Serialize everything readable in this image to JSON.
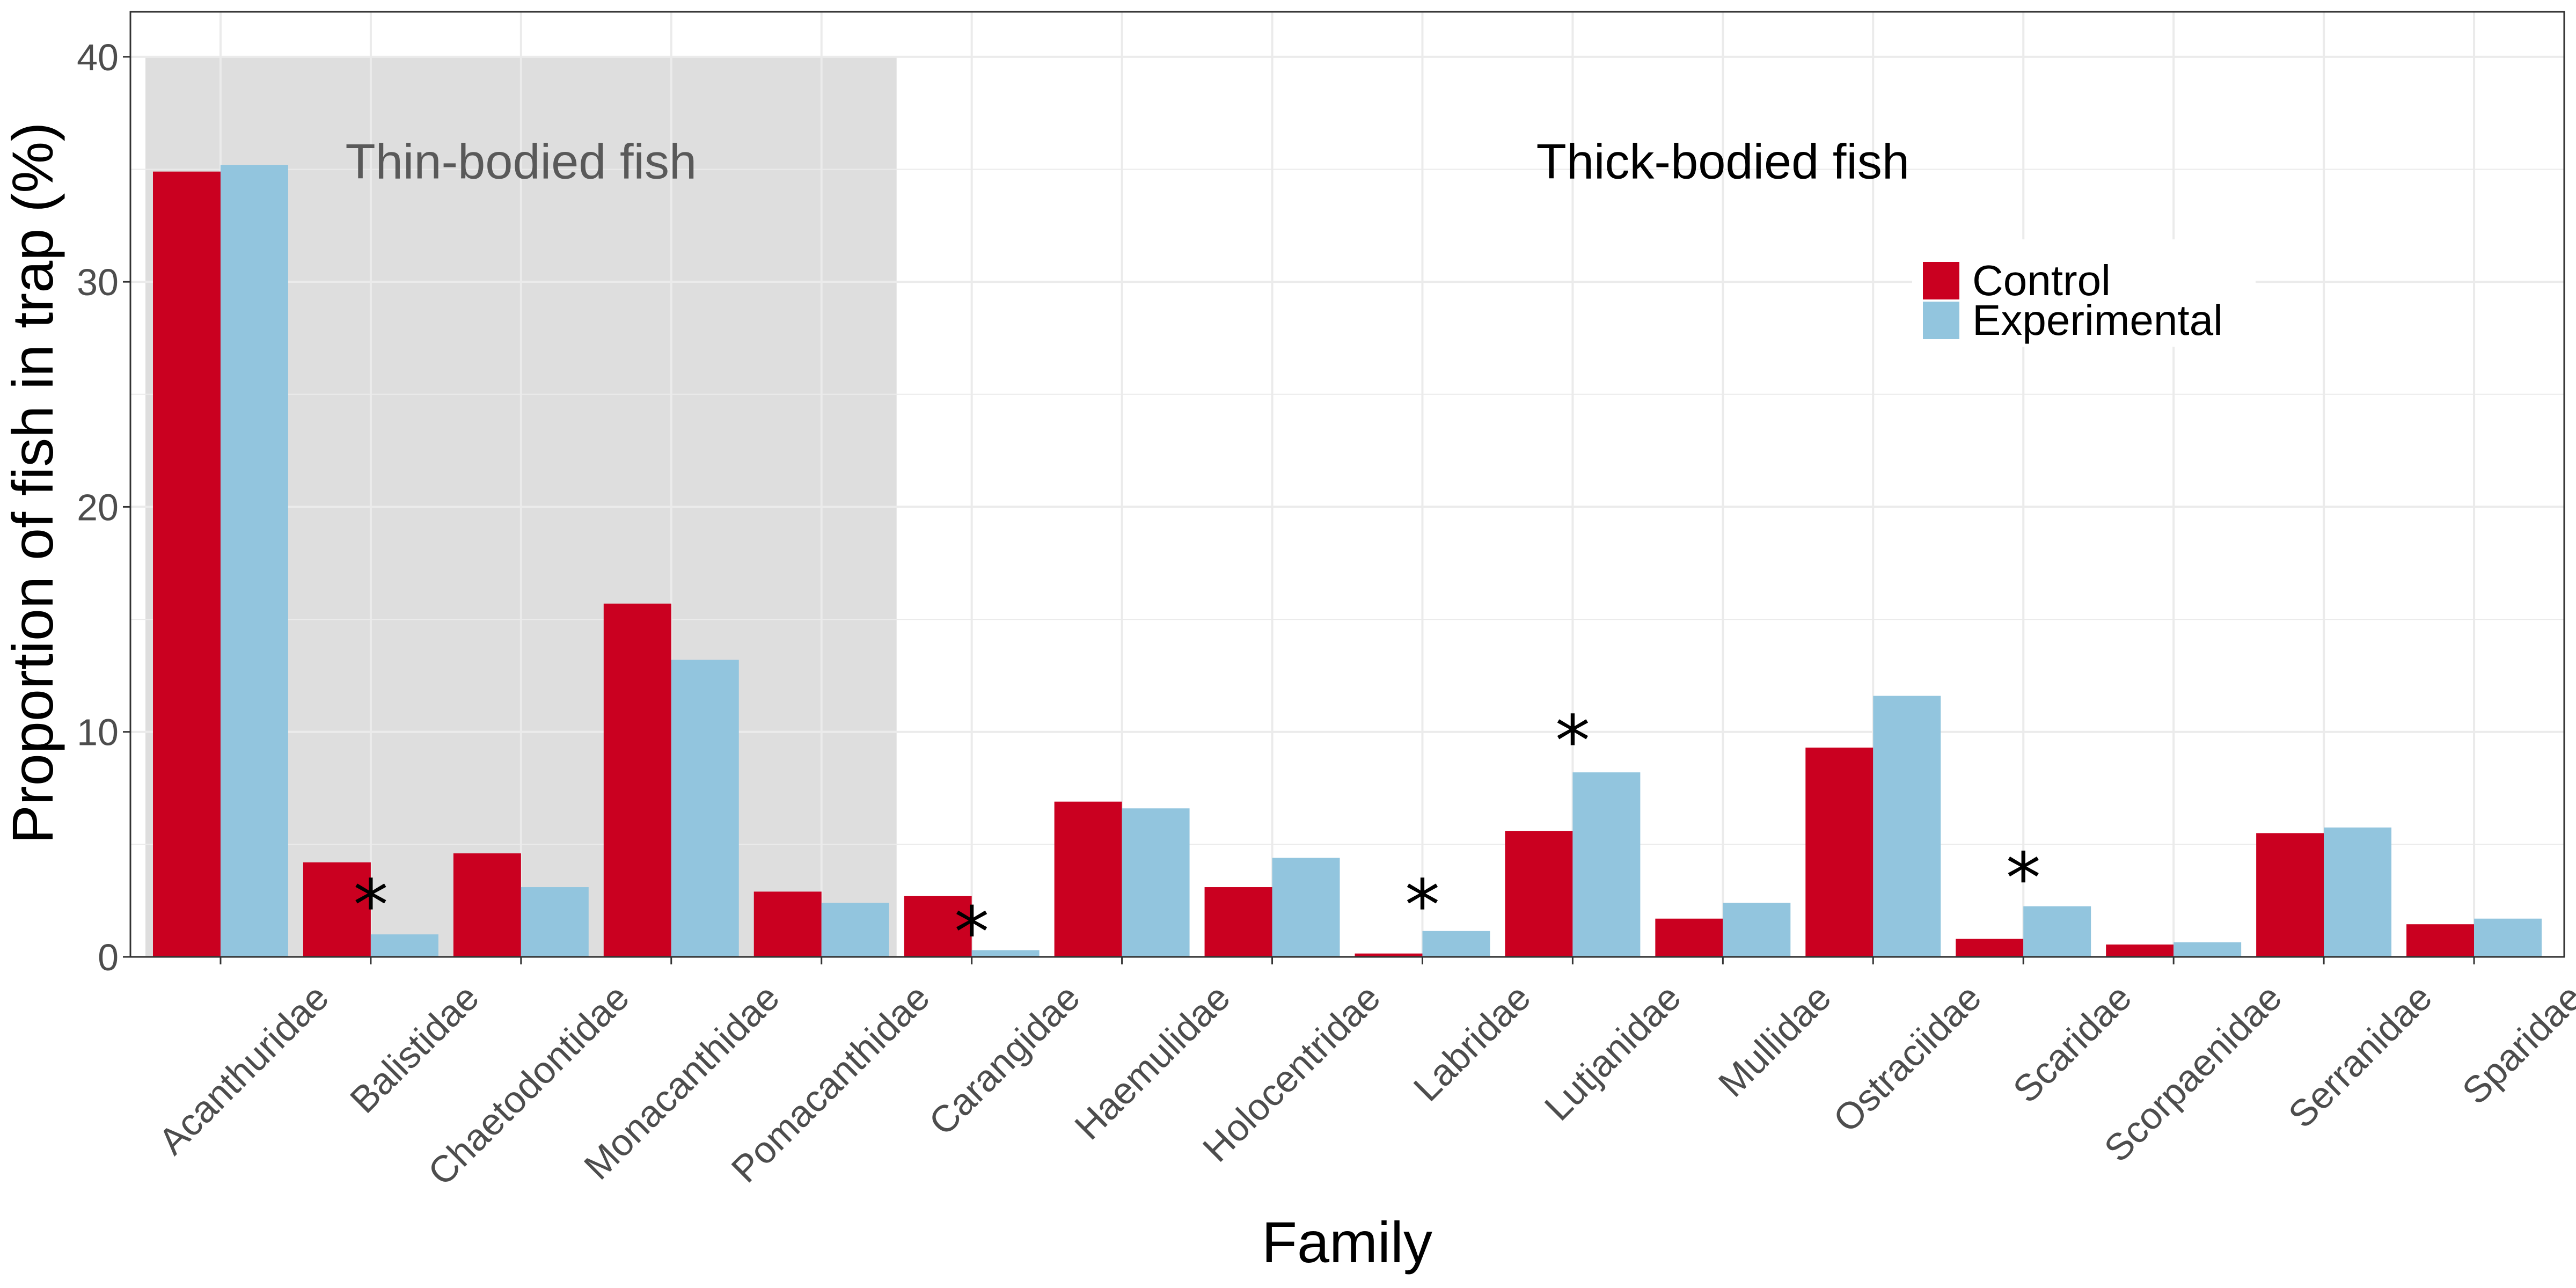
{
  "chart_data": {
    "type": "bar",
    "xlabel": "Family",
    "ylabel": "Proportion of fish in trap (%)",
    "ylim": [
      0,
      42
    ],
    "yticks": [
      0,
      10,
      20,
      30,
      40
    ],
    "grid": true,
    "legend_position": "top-right",
    "categories": [
      "Acanthuridae",
      "Balistidae",
      "Chaetodontidae",
      "Monacanthidae",
      "Pomacanthidae",
      "Carangidae",
      "Haemulidae",
      "Holocentridae",
      "Labridae",
      "Lutjanidae",
      "Mullidae",
      "Ostraciidae",
      "Scaridae",
      "Scorpaenidae",
      "Serranidae",
      "Sparidae"
    ],
    "series": [
      {
        "name": "Control",
        "color": "#CA0020",
        "values": [
          34.9,
          4.2,
          4.6,
          15.7,
          2.9,
          2.7,
          6.9,
          3.1,
          0.15,
          5.6,
          1.7,
          9.3,
          0.8,
          0.55,
          5.5,
          1.45
        ]
      },
      {
        "name": "Experimental",
        "color": "#92C5DE",
        "values": [
          35.2,
          1.0,
          3.1,
          13.2,
          2.4,
          0.3,
          6.6,
          4.4,
          1.15,
          8.2,
          2.4,
          11.6,
          2.25,
          0.65,
          5.75,
          1.7
        ]
      }
    ],
    "groups": [
      {
        "label": "Thin-bodied fish",
        "start": 0,
        "end": 4,
        "shaded": true,
        "shade_ylim": 40
      },
      {
        "label": "Thick-bodied fish",
        "start": 5,
        "end": 15,
        "shaded": false
      }
    ],
    "annotations": [
      {
        "category": "Balistidae",
        "text": "*",
        "y": 2.7
      },
      {
        "category": "Carangidae",
        "text": "*",
        "y": 1.5
      },
      {
        "category": "Labridae",
        "text": "*",
        "y": 2.7
      },
      {
        "category": "Lutjanidae",
        "text": "*",
        "y": 10.0
      },
      {
        "category": "Scaridae",
        "text": "*",
        "y": 3.9
      }
    ]
  }
}
